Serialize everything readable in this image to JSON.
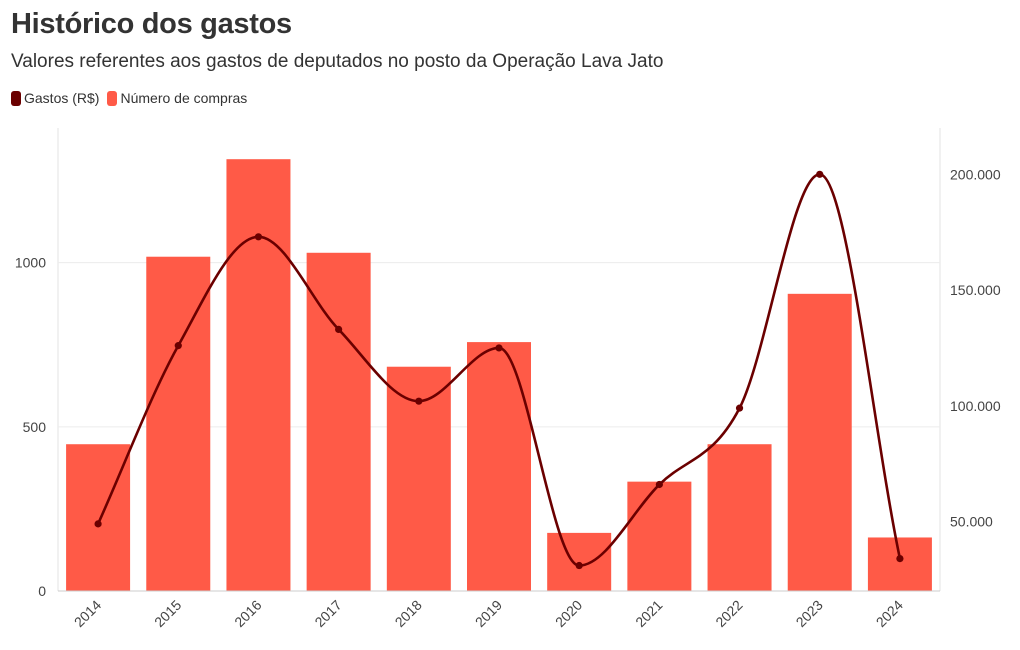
{
  "title": "Histórico dos gastos",
  "subtitle": "Valores referentes aos gastos de deputados no posto da Operação Lava Jato",
  "legend": [
    {
      "label": "Gastos (R$)",
      "color": "#6b0000"
    },
    {
      "label": "Número de compras",
      "color": "#ff5a47"
    }
  ],
  "chart_data": {
    "type": "bar",
    "categories": [
      "2014",
      "2015",
      "2016",
      "2017",
      "2018",
      "2019",
      "2020",
      "2021",
      "2022",
      "2023",
      "2024"
    ],
    "series": [
      {
        "name": "Número de compras",
        "type": "bar",
        "axis": "left",
        "color": "#ff5a47",
        "values": [
          447,
          1018,
          1315,
          1030,
          683,
          758,
          177,
          333,
          447,
          905,
          163
        ]
      },
      {
        "name": "Gastos (R$)",
        "type": "line",
        "axis": "right",
        "color": "#6b0000",
        "values": [
          49000,
          126000,
          173000,
          133000,
          102000,
          125000,
          31000,
          66000,
          99000,
          200000,
          34000
        ]
      }
    ],
    "y_left": {
      "ylim": [
        0,
        1410
      ],
      "ticks": [
        0,
        500,
        1000
      ],
      "tick_labels": [
        "0",
        "500",
        "1000"
      ]
    },
    "y_right": {
      "ylim": [
        20000,
        220000
      ],
      "ticks": [
        50000,
        100000,
        150000,
        200000
      ],
      "tick_labels": [
        "50.000",
        "100.000",
        "150.000",
        "200.000"
      ]
    },
    "grid": true,
    "legend_position": "top-left"
  }
}
